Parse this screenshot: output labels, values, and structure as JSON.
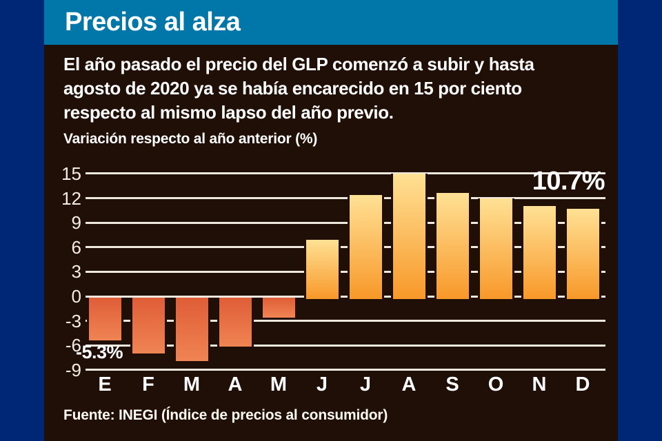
{
  "header": {
    "title": "Precios al alza"
  },
  "intro": {
    "lines": [
      "El año pasado el precio del GLP comenzó a subir y hasta",
      "agosto de 2020 ya se había encarecido en 15 por ciento",
      "respecto al mismo lapso del año previo."
    ]
  },
  "chart_data": {
    "type": "bar",
    "title": "Variación respecto al año anterior (%)",
    "categories": [
      "E",
      "F",
      "M",
      "A",
      "M",
      "J",
      "J",
      "A",
      "S",
      "O",
      "N",
      "D"
    ],
    "values": [
      -5.3,
      -6.9,
      -7.8,
      -6.0,
      -2.5,
      6.9,
      12.4,
      15.0,
      12.6,
      12.0,
      11.0,
      10.7
    ],
    "ylim": [
      -9,
      15
    ],
    "yticks": [
      15,
      12,
      9,
      6,
      3,
      0,
      -3,
      -6,
      -9
    ],
    "grid": true,
    "legend": "none",
    "annotations": [
      {
        "text": "-5.3%",
        "position": "below-first-bar"
      },
      {
        "text": "10.7%",
        "position": "top-right"
      }
    ]
  },
  "footer": {
    "source": "Fuente: INEGI (Índice de precios al consumidor)"
  },
  "colors": {
    "page_background": "#002776",
    "card_background": "#200f07",
    "header_background": "#0077a8",
    "grid_line": "#efe8df",
    "tick_text": "#f3ede5",
    "text": "#ffffff",
    "bar_positive_top": "#ffe195",
    "bar_positive_bottom": "#f89829",
    "bar_negative_top": "#df5d37",
    "bar_negative_bottom": "#f08453"
  }
}
